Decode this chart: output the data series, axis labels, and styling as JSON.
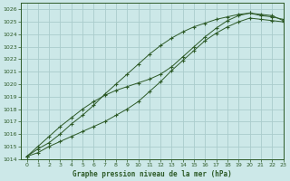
{
  "title": "Graphe pression niveau de la mer (hPa)",
  "bg_color": "#cce8e8",
  "grid_color": "#aacccc",
  "line_color": "#2d5a27",
  "xlim": [
    -0.5,
    23
  ],
  "ylim": [
    1014,
    1026.5
  ],
  "xticks": [
    0,
    1,
    2,
    3,
    4,
    5,
    6,
    7,
    8,
    9,
    10,
    11,
    12,
    13,
    14,
    15,
    16,
    17,
    18,
    19,
    20,
    21,
    22,
    23
  ],
  "yticks": [
    1014,
    1015,
    1016,
    1017,
    1018,
    1019,
    1020,
    1021,
    1022,
    1023,
    1024,
    1025,
    1026
  ],
  "series1_x": [
    0,
    1,
    2,
    3,
    4,
    5,
    6,
    7,
    8,
    9,
    10,
    11,
    12,
    13,
    14,
    15,
    16,
    17,
    18,
    19,
    20,
    21,
    22,
    23
  ],
  "series1_y": [
    1014.2,
    1014.8,
    1015.3,
    1016.0,
    1016.8,
    1017.5,
    1018.3,
    1019.2,
    1020.0,
    1020.8,
    1021.6,
    1022.4,
    1023.1,
    1023.7,
    1024.2,
    1024.6,
    1024.9,
    1025.2,
    1025.4,
    1025.6,
    1025.7,
    1025.5,
    1025.4,
    1025.2
  ],
  "series2_x": [
    0,
    1,
    2,
    3,
    4,
    5,
    6,
    7,
    8,
    9,
    10,
    11,
    12,
    13,
    14,
    15,
    16,
    17,
    18,
    19,
    20,
    21,
    22,
    23
  ],
  "series2_y": [
    1014.2,
    1015.0,
    1015.8,
    1016.6,
    1017.3,
    1018.0,
    1018.6,
    1019.1,
    1019.5,
    1019.8,
    1020.1,
    1020.4,
    1020.8,
    1021.4,
    1022.2,
    1023.0,
    1023.8,
    1024.5,
    1025.1,
    1025.5,
    1025.7,
    1025.6,
    1025.5,
    1025.1
  ],
  "series3_x": [
    0,
    1,
    2,
    3,
    4,
    5,
    6,
    7,
    8,
    9,
    10,
    11,
    12,
    13,
    14,
    15,
    16,
    17,
    18,
    19,
    20,
    21,
    22,
    23
  ],
  "series3_y": [
    1014.2,
    1014.5,
    1015.0,
    1015.4,
    1015.8,
    1016.2,
    1016.6,
    1017.0,
    1017.5,
    1018.0,
    1018.6,
    1019.4,
    1020.2,
    1021.1,
    1021.9,
    1022.7,
    1023.5,
    1024.1,
    1024.6,
    1025.0,
    1025.3,
    1025.2,
    1025.1,
    1025.0
  ]
}
